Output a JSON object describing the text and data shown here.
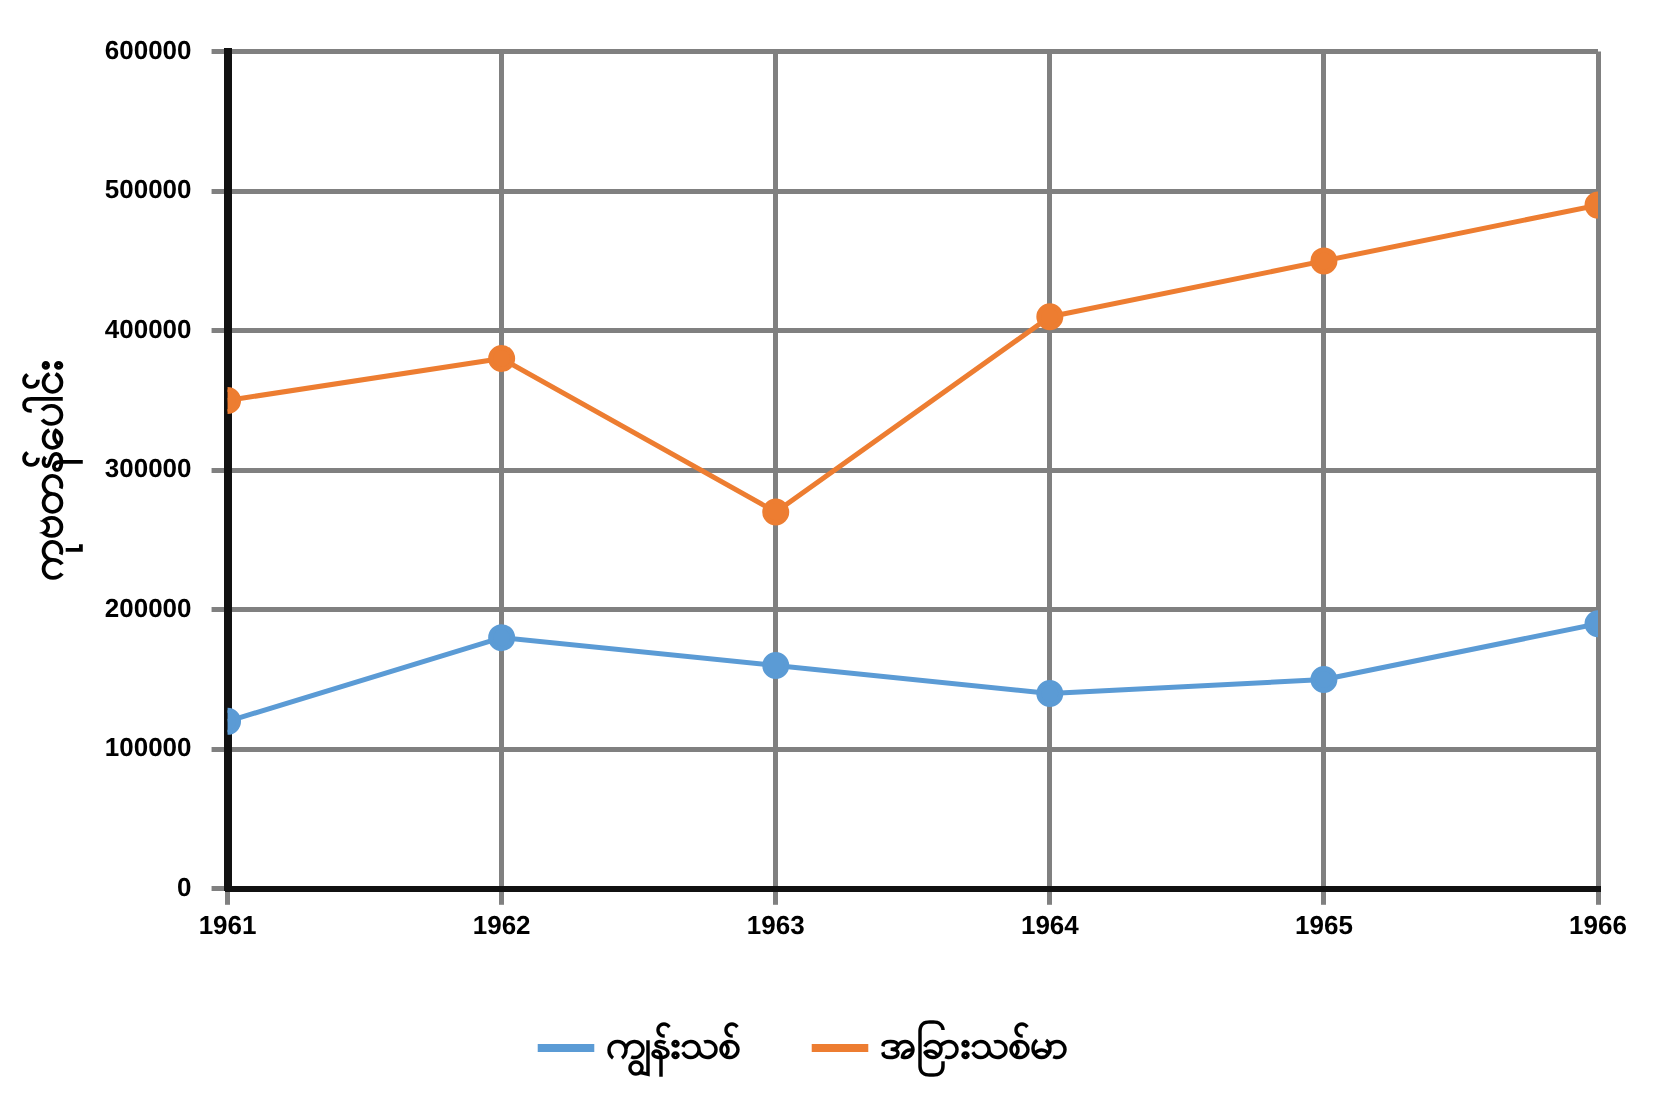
{
  "chart_data": {
    "type": "line",
    "ylabel": "ကုဗတန်ပေါင်း",
    "x": [
      1961,
      1962,
      1963,
      1964,
      1965,
      1966
    ],
    "series": [
      {
        "name": "ကျွန်းသစ်",
        "color": "#5b9bd5",
        "values": [
          120000,
          180000,
          160000,
          140000,
          150000,
          190000
        ]
      },
      {
        "name": "အခြားသစ်မာ",
        "color": "#ed7d31",
        "values": [
          350000,
          380000,
          270000,
          410000,
          450000,
          490000
        ]
      }
    ],
    "xlim": [
      1961,
      1966
    ],
    "xticks": [
      1961,
      1962,
      1963,
      1964,
      1965,
      1966
    ],
    "ylim": [
      0,
      600000
    ],
    "yticks": [
      0,
      100000,
      200000,
      300000,
      400000,
      500000,
      600000
    ],
    "grid": true,
    "legend": "bottom",
    "marker": "circle",
    "line_style": "solid"
  }
}
